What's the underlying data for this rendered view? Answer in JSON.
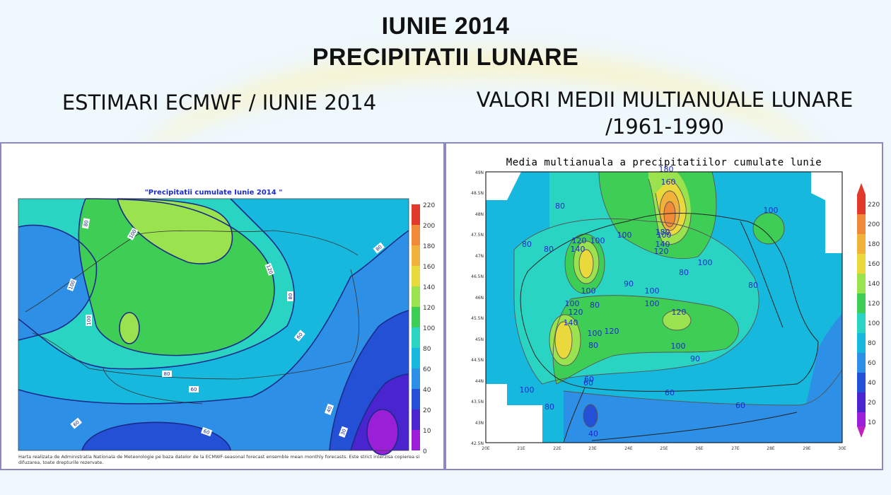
{
  "header": {
    "title_line1": "IUNIE 2014",
    "title_line2": "PRECIPITATII LUNARE"
  },
  "left_panel": {
    "heading": "ESTIMARI ECMWF / IUNIE 2014",
    "map_title": "\"Precipitatii cumulate Iunie 2014 \"",
    "footnote": "Harta realizata de Administratia Nationala de Meteorologie pe baza datelor de la ECMWF-seasonal forecast ensemble mean monthly forecasts. Este strict interzisa copierea si difuzarea, toate drepturile rezervate.",
    "colorbar_ticks": [
      "220",
      "200",
      "180",
      "160",
      "140",
      "120",
      "100",
      "80",
      "60",
      "40",
      "20",
      "10",
      "0"
    ],
    "contour_labels": [
      "80",
      "100",
      "120",
      "100",
      "80",
      "100",
      "80",
      "60",
      "60",
      "80",
      "60",
      "40",
      "30",
      "60",
      "60",
      "80"
    ]
  },
  "right_panel": {
    "heading_line1": "VALORI MEDII MULTIANUALE LUNARE",
    "heading_line2": "/1961-1990",
    "map_title": "Media multianuala a precipitatiilor cumulate lunie",
    "y_axis_labels": [
      "49N",
      "48.5N",
      "48N",
      "47.5N",
      "47N",
      "46.5N",
      "46N",
      "45.5N",
      "45N",
      "44.5N",
      "44N",
      "43.5N",
      "43N",
      "42.5N"
    ],
    "x_axis_labels": [
      "20E",
      "21E",
      "22E",
      "23E",
      "24E",
      "25E",
      "26E",
      "27E",
      "28E",
      "29E",
      "30E"
    ],
    "colorbar_ticks": [
      "220",
      "200",
      "180",
      "160",
      "140",
      "120",
      "100",
      "80",
      "60",
      "40",
      "20",
      "10"
    ],
    "contour_labels": [
      "180",
      "160",
      "80",
      "100",
      "100",
      "80",
      "80",
      "120",
      "140",
      "100",
      "100",
      "180",
      "140",
      "120",
      "80",
      "100",
      "80",
      "90",
      "100",
      "100",
      "80",
      "100",
      "100",
      "120",
      "120",
      "140",
      "100",
      "120",
      "80",
      "100",
      "90",
      "60",
      "60",
      "100",
      "80",
      "60",
      "60",
      "40"
    ]
  },
  "colors": {
    "c0_10": "#9a1fd6",
    "c10_20": "#4a25cf",
    "c20_40": "#2450d6",
    "c40_60": "#2e8fe6",
    "c60_80": "#16b9dd",
    "c80_100": "#2ad4c3",
    "c100_120": "#3fce55",
    "c120_140": "#9be24f",
    "c140_160": "#ead93c",
    "c160_180": "#f0b23a",
    "c180_200": "#f08a38",
    "c200_220": "#e23a2a",
    "contour": "#1a2a8a"
  }
}
